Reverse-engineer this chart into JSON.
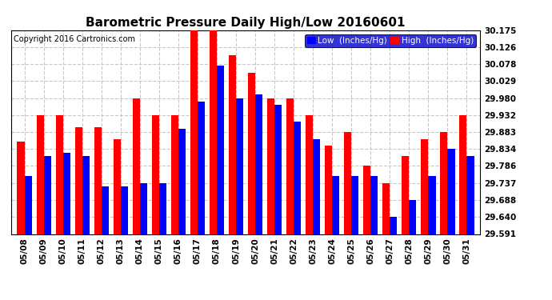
{
  "title": "Barometric Pressure Daily High/Low 20160601",
  "copyright": "Copyright 2016 Cartronics.com",
  "legend_low": "Low  (Inches/Hg)",
  "legend_high": "High  (Inches/Hg)",
  "dates": [
    "05/08",
    "05/09",
    "05/10",
    "05/11",
    "05/12",
    "05/13",
    "05/14",
    "05/15",
    "05/16",
    "05/17",
    "05/18",
    "05/19",
    "05/20",
    "05/21",
    "05/22",
    "05/23",
    "05/24",
    "05/25",
    "05/26",
    "05/27",
    "05/28",
    "05/29",
    "05/30",
    "05/31"
  ],
  "high": [
    29.855,
    29.932,
    29.932,
    29.897,
    29.897,
    29.863,
    29.98,
    29.932,
    29.932,
    30.175,
    30.175,
    30.102,
    30.053,
    29.98,
    29.98,
    29.932,
    29.843,
    29.883,
    29.786,
    29.737,
    29.815,
    29.863,
    29.883,
    29.932
  ],
  "low": [
    29.757,
    29.814,
    29.824,
    29.814,
    29.727,
    29.727,
    29.737,
    29.737,
    29.893,
    29.97,
    30.073,
    29.98,
    29.99,
    29.96,
    29.912,
    29.863,
    29.757,
    29.757,
    29.757,
    29.64,
    29.688,
    29.757,
    29.834,
    29.814
  ],
  "ylim_min": 29.591,
  "ylim_max": 30.175,
  "yticks": [
    29.591,
    29.64,
    29.688,
    29.737,
    29.786,
    29.834,
    29.883,
    29.932,
    29.98,
    30.029,
    30.078,
    30.126,
    30.175
  ],
  "bar_width": 0.38,
  "color_high": "#ff0000",
  "color_low": "#0000ff",
  "bg_color": "#ffffff",
  "grid_color": "#c8c8c8",
  "title_fontsize": 11,
  "copyright_fontsize": 7,
  "tick_fontsize": 7.5,
  "legend_fontsize": 7.5
}
